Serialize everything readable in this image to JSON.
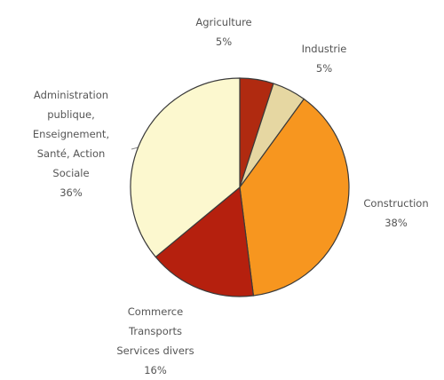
{
  "chart_data": {
    "type": "pie",
    "categories": [
      "Agriculture",
      "Industrie",
      "Construction",
      "Commerce\nTransports\nServices divers",
      "Administration\npublique,\nEnseignement,\nSanté, Action\nSociale"
    ],
    "values": [
      5,
      5,
      38,
      16,
      36
    ],
    "value_labels": [
      "5%",
      "5%",
      "38%",
      "16%",
      "36%"
    ],
    "colors": [
      "#b02a10",
      "#e6d7a2",
      "#f7961f",
      "#b5200e",
      "#fcf8cf"
    ]
  }
}
